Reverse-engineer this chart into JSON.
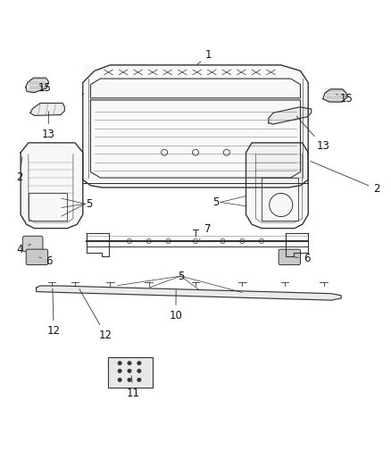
{
  "background_color": "#ffffff",
  "fig_width": 4.38,
  "fig_height": 5.33,
  "dpi": 100,
  "line_color": "#333333",
  "label_fontsize": 8.5,
  "label_color": "#111111"
}
